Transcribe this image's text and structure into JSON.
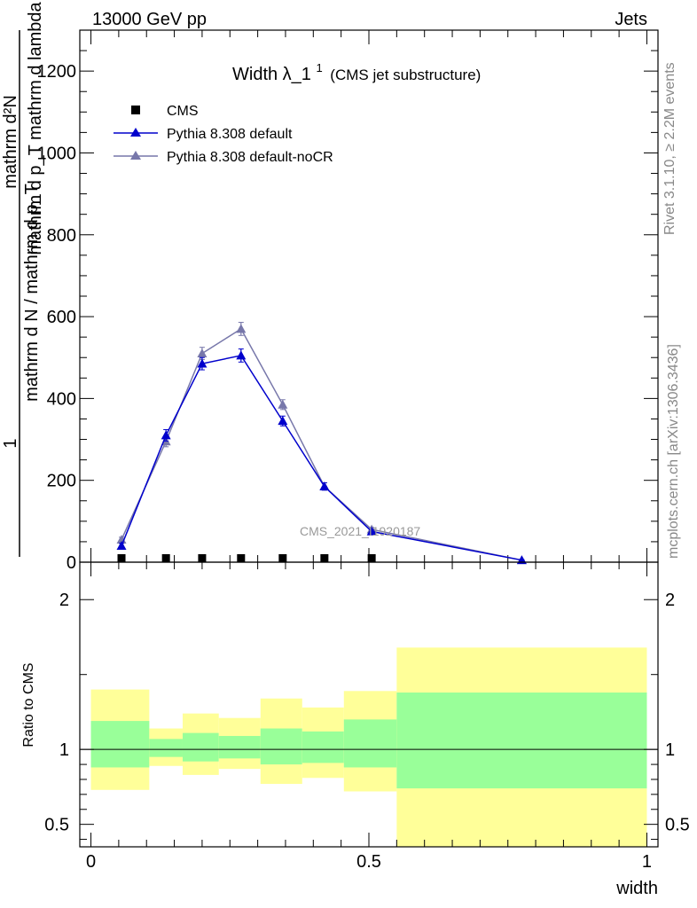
{
  "header": {
    "energy_label": "13000 GeV pp",
    "process_label": "Jets"
  },
  "side_labels": {
    "rivet": "Rivet 3.1.10, ≥ 2.2M events",
    "mcplots": "mcplots.cern.ch [arXiv:1306.3436]"
  },
  "chart_data": [
    {
      "type": "line",
      "title": "Width λ_1",
      "title_superscript": "1",
      "subtitle": "(CMS jet substructure)",
      "ylabel_numerator": "1",
      "ylabel_denominator": "mathrm d N / mathrm d p_T",
      "ylabel_derivative": "mathrm d²N",
      "ylabel_derivative_den": "mathrm d p_T mathrm d lambda",
      "watermark": "CMS_2021_I1920187",
      "ylim": [
        0,
        1300
      ],
      "xlim": [
        -0.02,
        1.02
      ],
      "y_ticks": [
        0,
        200,
        400,
        600,
        800,
        1000,
        1200
      ],
      "y_tick_labels": [
        "0",
        "200",
        "400",
        "600",
        "800",
        "1000",
        "1200"
      ],
      "grid": false,
      "legend_position": "top-left",
      "x": [
        0.055,
        0.135,
        0.2,
        0.27,
        0.345,
        0.42,
        0.505,
        0.775
      ],
      "series": [
        {
          "name": "CMS",
          "color": "#000000",
          "marker": "square",
          "values": [
            1.2,
            1.8,
            2.0,
            2.0,
            1.8,
            1.5,
            1.0,
            0.1
          ]
        },
        {
          "name": "Pythia 8.308 default",
          "color": "#0000cc",
          "marker": "triangle",
          "values": [
            40,
            310,
            485,
            505,
            345,
            185,
            75,
            5
          ],
          "errors": [
            6,
            14,
            15,
            16,
            12,
            9,
            5,
            1
          ]
        },
        {
          "name": "Pythia 8.308 default-noCR",
          "color": "#7777aa",
          "marker": "triangle",
          "values": [
            55,
            295,
            510,
            570,
            385,
            185,
            80,
            5
          ],
          "errors": [
            6,
            13,
            15,
            16,
            12,
            9,
            5,
            1
          ]
        }
      ]
    },
    {
      "type": "area",
      "ylabel": "Ratio to CMS",
      "xlabel": "width",
      "xlim": [
        -0.02,
        1.02
      ],
      "ylim": [
        0.35,
        2.25
      ],
      "x_ticks": [
        0,
        0.5,
        1
      ],
      "x_tick_labels": [
        "0",
        "0.5",
        "1"
      ],
      "y_ticks": [
        0.5,
        1,
        2
      ],
      "y_tick_labels": [
        "0.5",
        "1",
        "2"
      ],
      "reference_line": 1,
      "bins": [
        {
          "x0": 0.0,
          "x1": 0.105,
          "inner": [
            0.88,
            1.19
          ],
          "outer": [
            0.73,
            1.4
          ]
        },
        {
          "x0": 0.105,
          "x1": 0.165,
          "inner": [
            0.95,
            1.07
          ],
          "outer": [
            0.89,
            1.14
          ]
        },
        {
          "x0": 0.165,
          "x1": 0.23,
          "inner": [
            0.92,
            1.11
          ],
          "outer": [
            0.83,
            1.24
          ]
        },
        {
          "x0": 0.23,
          "x1": 0.305,
          "inner": [
            0.94,
            1.09
          ],
          "outer": [
            0.87,
            1.21
          ]
        },
        {
          "x0": 0.305,
          "x1": 0.38,
          "inner": [
            0.9,
            1.14
          ],
          "outer": [
            0.77,
            1.34
          ]
        },
        {
          "x0": 0.38,
          "x1": 0.455,
          "inner": [
            0.91,
            1.12
          ],
          "outer": [
            0.81,
            1.28
          ]
        },
        {
          "x0": 0.455,
          "x1": 0.55,
          "inner": [
            0.88,
            1.2
          ],
          "outer": [
            0.72,
            1.39
          ]
        },
        {
          "x0": 0.55,
          "x1": 1.0,
          "inner": [
            0.74,
            1.38
          ],
          "outer": [
            0.35,
            1.68
          ]
        }
      ],
      "colors": {
        "inner": "#99ff99",
        "outer": "#ffff99"
      }
    }
  ]
}
